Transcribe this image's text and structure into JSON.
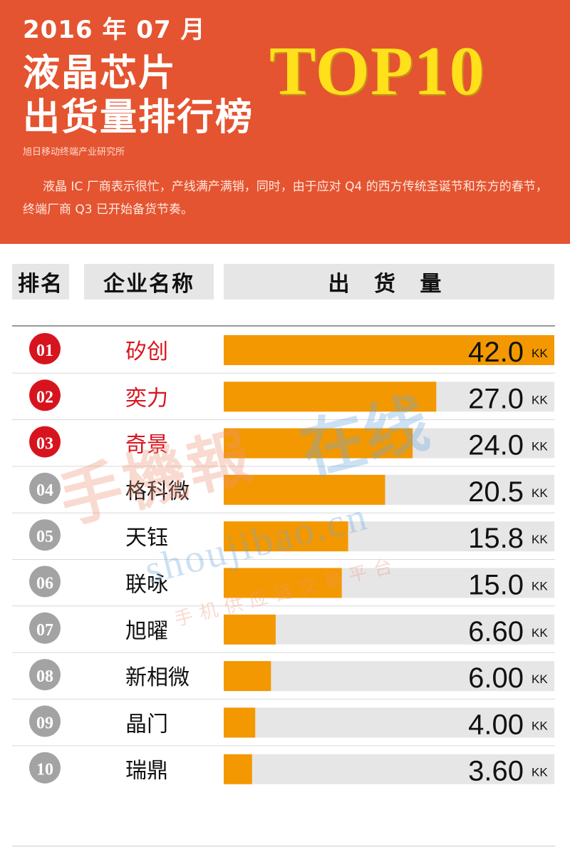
{
  "header": {
    "date": "2016 年 07 月",
    "title_line1": "液晶芯片",
    "title_line2": "出货量排行榜",
    "top10": "TOP10",
    "source": "旭日移动终端产业研究所",
    "description": "液晶 IC 厂商表示很忙，产线满产满销，同时，由于应对 Q4 的西方传统圣诞节和东方的春节，终端厂商 Q3 已开始备货节奏。"
  },
  "table_header": {
    "rank": "排名",
    "company": "企业名称",
    "volume": "出 货 量"
  },
  "watermark": {
    "brand_cn": "手機報",
    "brand_box": "在线",
    "url": "shoujibao.cn",
    "tagline": "手机供应链交易平台"
  },
  "colors": {
    "header_bg": "#e45430",
    "top3_badge": "#d7141e",
    "other_badge": "#a3a3a3",
    "bar": "#f39800",
    "track": "#e6e6e6",
    "top3_name": "#d7141e"
  },
  "chart_data": {
    "type": "bar",
    "orientation": "horizontal",
    "unit": "KK",
    "ranks": [
      "01",
      "02",
      "03",
      "04",
      "05",
      "06",
      "07",
      "08",
      "09",
      "10"
    ],
    "categories": [
      "矽创",
      "奕力",
      "奇景",
      "格科微",
      "天钰",
      "联咏",
      "旭曜",
      "新相微",
      "晶门",
      "瑞鼎"
    ],
    "values": [
      42.0,
      27.0,
      24.0,
      20.5,
      15.8,
      15.0,
      6.6,
      6.0,
      4.0,
      3.6
    ],
    "value_labels": [
      "42.0",
      "27.0",
      "24.0",
      "20.5",
      "15.8",
      "15.0",
      "6.60",
      "6.00",
      "4.00",
      "3.60"
    ],
    "xlim": [
      0,
      42
    ]
  }
}
